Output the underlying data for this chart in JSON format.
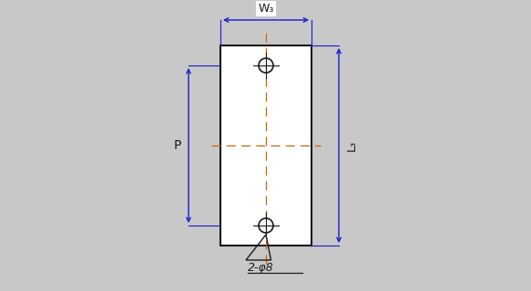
{
  "bg_color": "#c8c8c8",
  "rect_color": "#ffffff",
  "line_color": "#1a1a1a",
  "dim_color": "#1a1acd",
  "orange_color": "#cc6600",
  "text_color": "#1a1a1a",
  "fig_width": 5.83,
  "fig_height": 3.2,
  "label_W3": "W₃",
  "label_L3": "L₃",
  "label_P": "P",
  "label_phi": "2-φ8"
}
